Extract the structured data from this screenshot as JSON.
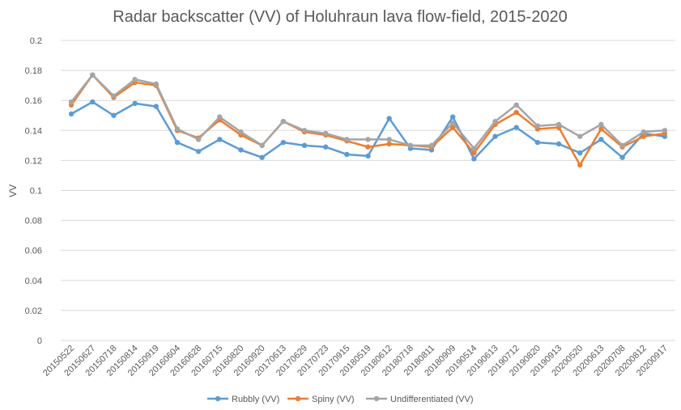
{
  "chart_data": {
    "type": "line",
    "title": "Radar backscatter (VV) of Holuhraun lava flow-field, 2015-2020",
    "xlabel": "",
    "ylabel": "VV",
    "ylim": [
      0,
      0.2
    ],
    "yticks": [
      "0",
      "0.02",
      "0.04",
      "0.06",
      "0.08",
      "0.1",
      "0.12",
      "0.14",
      "0.16",
      "0.18",
      "0.2"
    ],
    "grid": true,
    "legend_position": "bottom",
    "categories": [
      "20150522",
      "20150627",
      "20150718",
      "20150814",
      "20150919",
      "20160604",
      "20160628",
      "20160715",
      "20160820",
      "20160920",
      "20170613",
      "20170629",
      "20170723",
      "20170915",
      "20180519",
      "20180612",
      "20180718",
      "20180811",
      "20180909",
      "20190514",
      "20190613",
      "20190712",
      "20190820",
      "20190913",
      "20200520",
      "20200613",
      "20200708",
      "20200812",
      "20200917"
    ],
    "series": [
      {
        "name": "Rubbly (VV)",
        "color": "#5b9bd5",
        "values": [
          0.151,
          0.159,
          0.15,
          0.158,
          0.156,
          0.132,
          0.126,
          0.134,
          0.127,
          0.122,
          0.132,
          0.13,
          0.129,
          0.124,
          0.123,
          0.148,
          0.128,
          0.127,
          0.149,
          0.121,
          0.136,
          0.142,
          0.132,
          0.131,
          0.125,
          0.134,
          0.122,
          0.138,
          0.136
        ]
      },
      {
        "name": "Spiny (VV)",
        "color": "#ed7d31",
        "values": [
          0.157,
          0.177,
          0.162,
          0.172,
          0.17,
          0.14,
          0.135,
          0.147,
          0.137,
          0.13,
          0.146,
          0.139,
          0.137,
          0.133,
          0.129,
          0.131,
          0.13,
          0.129,
          0.142,
          0.125,
          0.144,
          0.152,
          0.141,
          0.142,
          0.117,
          0.141,
          0.129,
          0.136,
          0.138
        ]
      },
      {
        "name": "Undifferentiated (VV)",
        "color": "#a5a5a5",
        "values": [
          0.159,
          0.177,
          0.163,
          0.174,
          0.171,
          0.141,
          0.134,
          0.149,
          0.139,
          0.13,
          0.146,
          0.14,
          0.138,
          0.134,
          0.134,
          0.134,
          0.13,
          0.13,
          0.145,
          0.128,
          0.146,
          0.157,
          0.143,
          0.144,
          0.136,
          0.144,
          0.13,
          0.139,
          0.14
        ]
      }
    ]
  }
}
